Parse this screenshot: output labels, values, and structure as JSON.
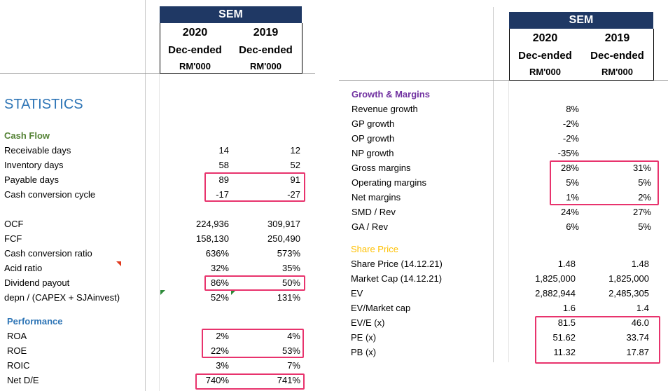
{
  "left": {
    "header": {
      "company": "SEM",
      "col1": {
        "year": "2020",
        "period": "Dec-ended",
        "unit": "RM'000"
      },
      "col2": {
        "year": "2019",
        "period": "Dec-ended",
        "unit": "RM'000"
      }
    },
    "title": "STATISTICS",
    "cash_flow_title": "Cash Flow",
    "cash_flow_rows": [
      {
        "label": "Receivable days",
        "v2020": "14",
        "v2019": "12"
      },
      {
        "label": "Inventory days",
        "v2020": "58",
        "v2019": "52"
      },
      {
        "label": "Payable days",
        "v2020": "89",
        "v2019": "91"
      },
      {
        "label": "Cash conversion cycle",
        "v2020": "-17",
        "v2019": "-27"
      }
    ],
    "cash_rows_2": [
      {
        "label": "OCF",
        "v2020": "224,936",
        "v2019": "309,917"
      },
      {
        "label": "FCF",
        "v2020": "158,130",
        "v2019": "250,490"
      },
      {
        "label": "Cash conversion ratio",
        "v2020": "636%",
        "v2019": "573%"
      },
      {
        "label": "Acid ratio",
        "v2020": "32%",
        "v2019": "35%"
      },
      {
        "label": "Dividend payout",
        "v2020": "86%",
        "v2019": "50%"
      },
      {
        "label": "depn / (CAPEX + SJAinvest)",
        "v2020": "52%",
        "v2019": "131%"
      }
    ],
    "performance_title": "Performance",
    "performance_rows": [
      {
        "label": "ROA",
        "v2020": "2%",
        "v2019": "4%"
      },
      {
        "label": "ROE",
        "v2020": "22%",
        "v2019": "53%"
      },
      {
        "label": "ROIC",
        "v2020": "3%",
        "v2019": "7%"
      },
      {
        "label": "Net D/E",
        "v2020": "740%",
        "v2019": "741%"
      }
    ]
  },
  "right": {
    "header": {
      "company": "SEM",
      "col1": {
        "year": "2020",
        "period": "Dec-ended",
        "unit": "RM'000"
      },
      "col2": {
        "year": "2019",
        "period": "Dec-ended",
        "unit": "RM'000"
      }
    },
    "growth_title": "Growth & Margins",
    "growth_rows": [
      {
        "label": "Revenue growth",
        "v2020": "8%",
        "v2019": ""
      },
      {
        "label": "GP growth",
        "v2020": "-2%",
        "v2019": ""
      },
      {
        "label": "OP growth",
        "v2020": "-2%",
        "v2019": ""
      },
      {
        "label": "NP growth",
        "v2020": "-35%",
        "v2019": ""
      },
      {
        "label": "Gross margins",
        "v2020": "28%",
        "v2019": "31%"
      },
      {
        "label": "Operating margins",
        "v2020": "5%",
        "v2019": "5%"
      },
      {
        "label": "Net margins",
        "v2020": "1%",
        "v2019": "2%"
      },
      {
        "label": "SMD / Rev",
        "v2020": "24%",
        "v2019": "27%"
      },
      {
        "label": "GA / Rev",
        "v2020": "6%",
        "v2019": "5%"
      }
    ],
    "share_title": "Share Price",
    "share_rows": [
      {
        "label": "Share Price (14.12.21)",
        "v2020": "1.48",
        "v2019": "1.48"
      },
      {
        "label": "Market Cap (14.12.21)",
        "v2020": "1,825,000",
        "v2019": "1,825,000"
      },
      {
        "label": "EV",
        "v2020": "2,882,944",
        "v2019": "2,485,305"
      },
      {
        "label": "EV/Market cap",
        "v2020": "1.6",
        "v2019": "1.4"
      },
      {
        "label": "EV/E (x)",
        "v2020": "81.5",
        "v2019": "46.0"
      },
      {
        "label": "PE (x)",
        "v2020": "51.62",
        "v2019": "33.74"
      },
      {
        "label": "PB (x)",
        "v2020": "11.32",
        "v2019": "17.87"
      }
    ]
  },
  "colors": {
    "highlight": "#e8336d",
    "header_bg": "#1f3864",
    "cash_flow": "#548235",
    "performance": "#2e75b6",
    "growth": "#7030a0",
    "share_price": "#ffc000"
  }
}
